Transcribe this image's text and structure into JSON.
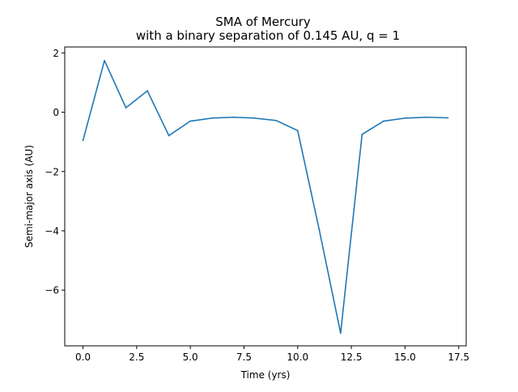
{
  "chart_data": {
    "type": "line",
    "title": "SMA of Mercury",
    "subtitle": "with a binary separation of 0.145 AU, q = 1",
    "xlabel": "Time (yrs)",
    "ylabel": "Semi-major axis (AU)",
    "xlim": [
      -0.85,
      17.85
    ],
    "ylim": [
      -7.88,
      2.2
    ],
    "xticks": [
      0.0,
      2.5,
      5.0,
      7.5,
      10.0,
      12.5,
      15.0,
      17.5
    ],
    "xtick_labels": [
      "0.0",
      "2.5",
      "5.0",
      "7.5",
      "10.0",
      "12.5",
      "15.0",
      "17.5"
    ],
    "yticks": [
      2,
      0,
      -2,
      -4,
      -6
    ],
    "ytick_labels": [
      "2",
      "0",
      "−2",
      "−4",
      "−6"
    ],
    "grid": false,
    "series": [
      {
        "color": "#1f77b4",
        "x": [
          0,
          1,
          2,
          3,
          4,
          5,
          6,
          7,
          8,
          9,
          10,
          11,
          12,
          13,
          14,
          15,
          16,
          17
        ],
        "y": [
          -0.95,
          1.74,
          0.15,
          0.72,
          -0.79,
          -0.3,
          -0.2,
          -0.17,
          -0.2,
          -0.28,
          -0.62,
          -3.95,
          -7.45,
          -0.75,
          -0.3,
          -0.2,
          -0.17,
          -0.19
        ]
      }
    ]
  }
}
